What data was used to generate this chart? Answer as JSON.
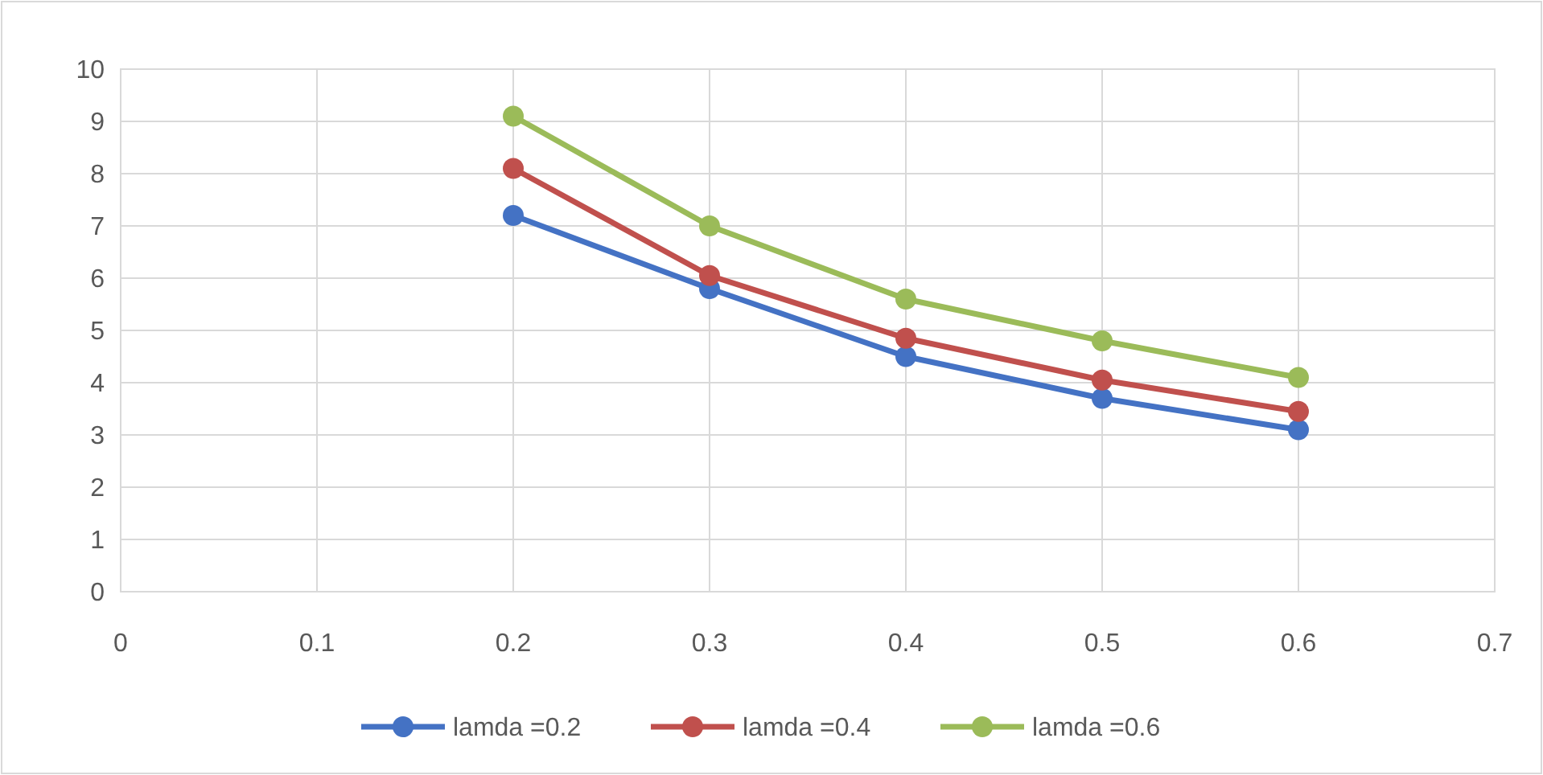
{
  "chart_data": {
    "type": "line",
    "x": [
      0.2,
      0.3,
      0.4,
      0.5,
      0.6
    ],
    "series": [
      {
        "name": "lamda =0.2",
        "color": "#4472c4",
        "values": [
          7.2,
          5.8,
          4.5,
          3.7,
          3.1
        ]
      },
      {
        "name": "lamda =0.4",
        "color": "#c0504d",
        "values": [
          8.1,
          6.05,
          4.85,
          4.05,
          3.45
        ]
      },
      {
        "name": "lamda =0.6",
        "color": "#9bbb59",
        "values": [
          9.1,
          7.0,
          5.6,
          4.8,
          4.1
        ]
      }
    ],
    "xlim": [
      0,
      0.7
    ],
    "xticks": [
      0,
      0.1,
      0.2,
      0.3,
      0.4,
      0.5,
      0.6,
      0.7
    ],
    "ylim": [
      0,
      10
    ],
    "yticks": [
      0,
      1,
      2,
      3,
      4,
      5,
      6,
      7,
      8,
      9,
      10
    ],
    "grid": true,
    "legend": "bottom",
    "marker": "circle",
    "line_style": "solid"
  }
}
